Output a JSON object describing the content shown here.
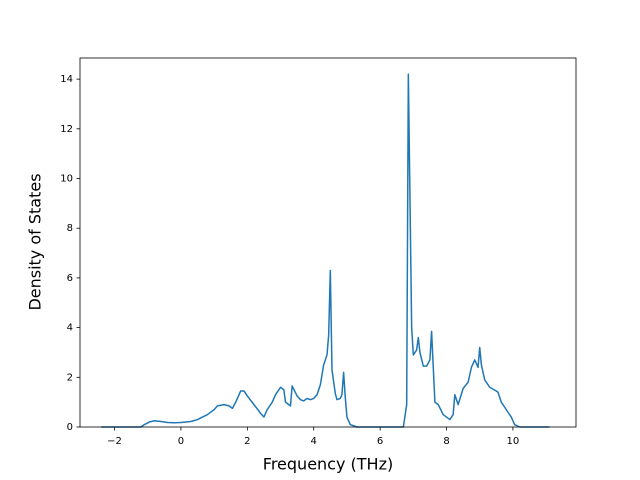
{
  "chart_data": {
    "type": "line",
    "xlabel": "Frequency (THz)",
    "ylabel": "Density of States",
    "x": [
      -2.4,
      -1.2,
      -1.1,
      -0.95,
      -0.8,
      -0.6,
      -0.4,
      -0.2,
      0,
      0.3,
      0.5,
      0.8,
      1.0,
      1.1,
      1.3,
      1.45,
      1.55,
      1.65,
      1.8,
      1.9,
      2.0,
      2.2,
      2.4,
      2.5,
      2.6,
      2.75,
      2.85,
      3.0,
      3.1,
      3.15,
      3.3,
      3.35,
      3.5,
      3.6,
      3.7,
      3.8,
      3.9,
      4.0,
      4.1,
      4.2,
      4.3,
      4.4,
      4.45,
      4.5,
      4.55,
      4.65,
      4.7,
      4.8,
      4.85,
      4.9,
      4.95,
      5.0,
      5.1,
      5.3,
      6.7,
      6.8,
      6.85,
      6.95,
      7.0,
      7.1,
      7.15,
      7.2,
      7.3,
      7.4,
      7.5,
      7.55,
      7.65,
      7.75,
      7.9,
      8.1,
      8.2,
      8.25,
      8.35,
      8.5,
      8.65,
      8.75,
      8.85,
      8.95,
      9.0,
      9.05,
      9.15,
      9.3,
      9.5,
      9.55,
      9.65,
      9.8,
      9.95,
      10.05,
      10.2,
      11.1
    ],
    "series": [
      {
        "color": "#1f77b4",
        "values": [
          0,
          0,
          0.1,
          0.2,
          0.25,
          0.22,
          0.18,
          0.17,
          0.18,
          0.22,
          0.3,
          0.5,
          0.7,
          0.85,
          0.9,
          0.85,
          0.75,
          1.0,
          1.45,
          1.45,
          1.25,
          0.9,
          0.55,
          0.4,
          0.7,
          1.0,
          1.3,
          1.6,
          1.5,
          1.0,
          0.85,
          1.65,
          1.25,
          1.1,
          1.05,
          1.15,
          1.1,
          1.15,
          1.3,
          1.7,
          2.5,
          2.9,
          3.7,
          6.3,
          2.3,
          1.35,
          1.1,
          1.15,
          1.3,
          2.2,
          1.2,
          0.4,
          0.1,
          0,
          0,
          0.9,
          14.2,
          4.0,
          2.9,
          3.1,
          3.6,
          3.0,
          2.45,
          2.45,
          2.7,
          3.85,
          1.0,
          0.9,
          0.5,
          0.3,
          0.5,
          1.3,
          0.9,
          1.55,
          1.8,
          2.4,
          2.7,
          2.4,
          3.2,
          2.5,
          1.9,
          1.6,
          1.45,
          1.4,
          1.0,
          0.7,
          0.4,
          0.1,
          0,
          0
        ]
      }
    ],
    "xlim": [
      -3.04,
      11.9
    ],
    "xticks": [
      {
        "value": -2,
        "label": "−2"
      },
      0,
      2,
      4,
      6,
      8,
      10
    ],
    "ylim": [
      0,
      14.85
    ],
    "yticks": [
      0,
      2,
      4,
      6,
      8,
      10,
      12,
      14
    ]
  }
}
